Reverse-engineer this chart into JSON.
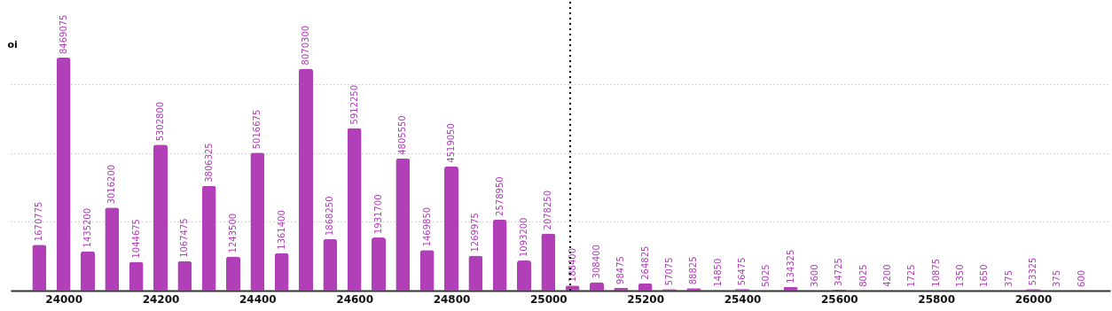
{
  "chart_data": {
    "type": "bar",
    "ylabel": "oi",
    "x": [
      23950,
      24000,
      24050,
      24100,
      24150,
      24200,
      24250,
      24300,
      24350,
      24400,
      24450,
      24500,
      24550,
      24600,
      24650,
      24700,
      24750,
      24800,
      24850,
      24900,
      24950,
      25000,
      25050,
      25100,
      25150,
      25200,
      25250,
      25300,
      25350,
      25400,
      25450,
      25500,
      25550,
      25600,
      25650,
      25700,
      25750,
      25800,
      25850,
      25900,
      25950,
      26000,
      26050,
      26100
    ],
    "values": [
      1670775,
      8469075,
      1435200,
      3016200,
      1044675,
      5302800,
      1067475,
      3806325,
      1243500,
      5016675,
      1361400,
      8070300,
      1868250,
      5912250,
      1931700,
      4805550,
      1469850,
      4519050,
      1269975,
      2578950,
      1093200,
      2078250,
      188400,
      308400,
      98475,
      264825,
      57075,
      88825,
      14850,
      56475,
      5025,
      134325,
      3600,
      34725,
      8025,
      4200,
      1725,
      10875,
      1350,
      1650,
      375,
      53325,
      375,
      600
    ],
    "color": "#b03fb8",
    "data_labels": true,
    "xlim": [
      23900,
      26150
    ],
    "xticks": [
      24000,
      24200,
      24400,
      24600,
      24800,
      25000,
      25200,
      25400,
      25600,
      25800,
      26000
    ],
    "ylim": [
      0,
      10500000
    ],
    "yticks": [
      {
        "value": 0,
        "label": null
      },
      {
        "value": 2500000,
        "label": null
      },
      {
        "value": 5000000,
        "label": null
      },
      {
        "value": 7500000,
        "label": null
      }
    ],
    "tick_labels": "x",
    "grid": "y",
    "ref_lines": [
      {
        "axis": "x",
        "value": 25045,
        "label": null,
        "color": "#000000",
        "line_style": "dotted"
      }
    ]
  }
}
